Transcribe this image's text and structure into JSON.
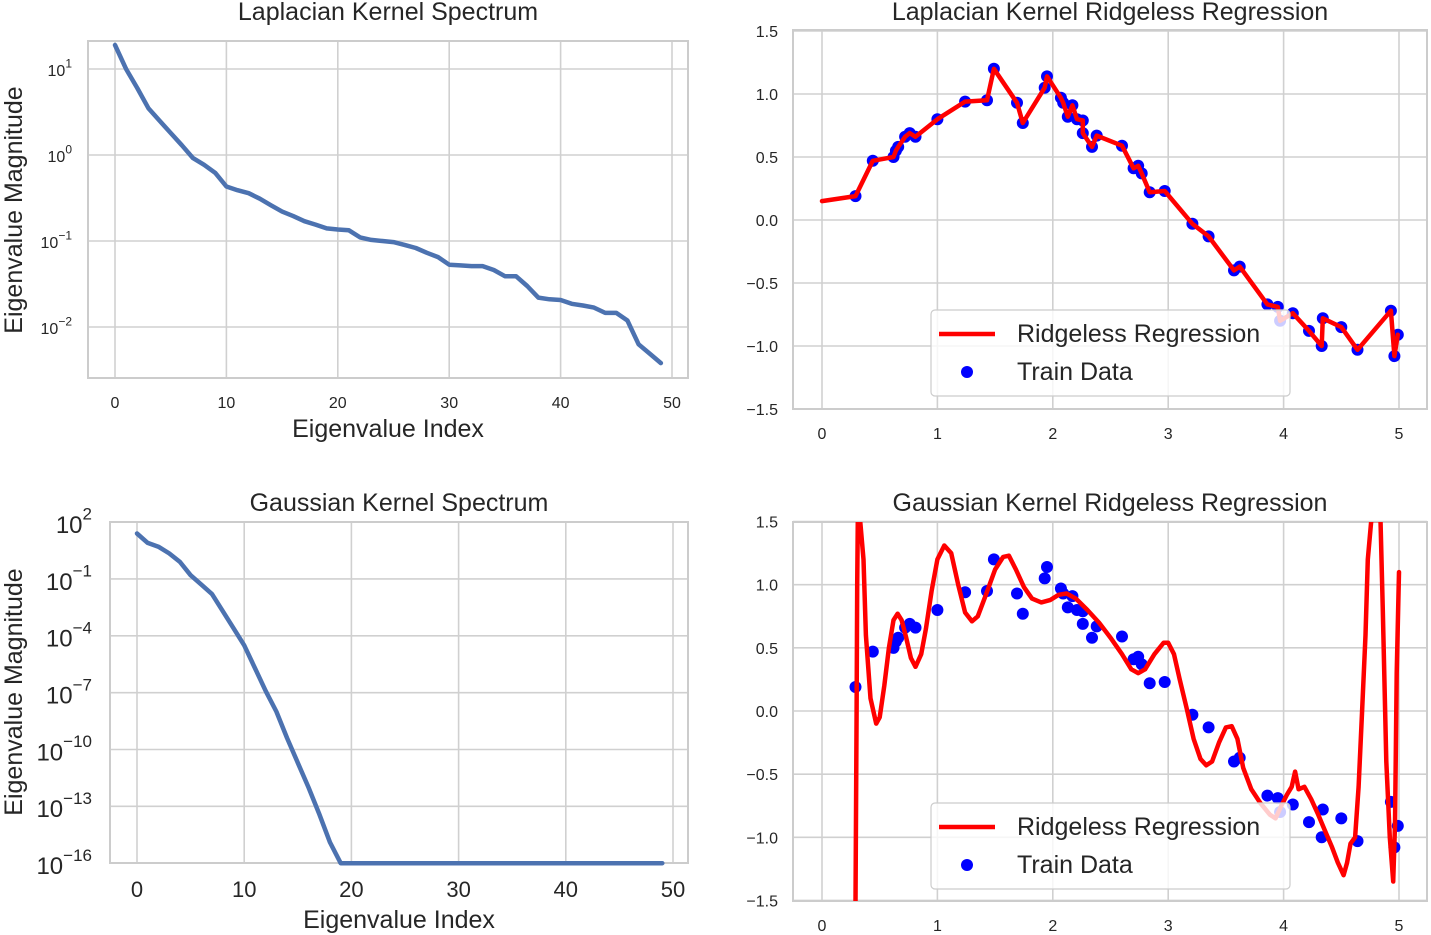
{
  "figure": {
    "background": "#ffffff",
    "colors": {
      "spectrum_line": "#4c72b0",
      "regression_line": "#ff0000",
      "train_points": "#0000ff",
      "grid": "#d0d0d0"
    }
  },
  "chart_data": [
    {
      "id": "laplacian_spectrum",
      "type": "line",
      "title": "Laplacian Kernel Spectrum",
      "xlabel": "Eigenvalue Index",
      "ylabel": "Eigenvalue Magnitude",
      "yscale": "log",
      "xlim": [
        -2.5,
        51.5
      ],
      "ylim_log10": [
        -2.6,
        1.33
      ],
      "xticks": [
        0,
        10,
        20,
        30,
        40,
        50
      ],
      "xtick_labels": [
        "0",
        "10",
        "20",
        "30",
        "40",
        "50"
      ],
      "yticks_log10": [
        1,
        0,
        -1,
        -2
      ],
      "ytick_labels": [
        {
          "base": "10",
          "exp": "1"
        },
        {
          "base": "10",
          "exp": "0"
        },
        {
          "base": "10",
          "exp": "−1"
        },
        {
          "base": "10",
          "exp": "−2"
        }
      ],
      "grid": true,
      "series": [
        {
          "name": "spectrum",
          "x": [
            0,
            1,
            2,
            3,
            4,
            5,
            6,
            7,
            8,
            9,
            10,
            11,
            12,
            13,
            14,
            15,
            16,
            17,
            18,
            19,
            20,
            21,
            22,
            23,
            24,
            25,
            26,
            27,
            28,
            29,
            30,
            31,
            32,
            33,
            34,
            35,
            36,
            37,
            38,
            39,
            40,
            41,
            42,
            43,
            44,
            45,
            46,
            47,
            48,
            49
          ],
          "values": [
            19,
            10,
            6.0,
            3.5,
            2.5,
            1.8,
            1.3,
            0.92,
            0.77,
            0.62,
            0.43,
            0.39,
            0.36,
            0.31,
            0.26,
            0.22,
            0.195,
            0.17,
            0.155,
            0.14,
            0.136,
            0.133,
            0.11,
            0.103,
            0.1,
            0.097,
            0.09,
            0.083,
            0.073,
            0.065,
            0.053,
            0.052,
            0.051,
            0.051,
            0.046,
            0.039,
            0.039,
            0.03,
            0.022,
            0.021,
            0.0206,
            0.0186,
            0.0178,
            0.0168,
            0.0146,
            0.0146,
            0.0119,
            0.0063,
            0.0049,
            0.0038
          ]
        }
      ]
    },
    {
      "id": "laplacian_regression",
      "type": "line+scatter",
      "title": "Laplacian Kernel Ridgeless Regression",
      "xlabel": "",
      "ylabel": "",
      "xlim": [
        -0.25,
        5.25
      ],
      "ylim": [
        -1.5,
        1.5
      ],
      "xticks": [
        0,
        1,
        2,
        3,
        4,
        5
      ],
      "xtick_labels": [
        "0",
        "1",
        "2",
        "3",
        "4",
        "5"
      ],
      "yticks": [
        1.5,
        1.0,
        0.5,
        0.0,
        -0.5,
        -1.0,
        -1.5
      ],
      "ytick_labels": [
        "1.5",
        "1.0",
        "0.5",
        "0.0",
        "−0.5",
        "−1.0",
        "−1.5"
      ],
      "grid": true,
      "legend": {
        "position": "lower center-right",
        "entries": [
          "Ridgeless Regression",
          "Train Data"
        ]
      },
      "series": [
        {
          "name": "Ridgeless Regression",
          "kind": "line",
          "source": "interpolate_train",
          "x_start": 0.0,
          "y_start": 0.15
        },
        {
          "name": "Train Data",
          "kind": "scatter",
          "source": "train_data"
        }
      ]
    },
    {
      "id": "gaussian_spectrum",
      "type": "line",
      "title": "Gaussian Kernel Spectrum",
      "xlabel": "Eigenvalue Index",
      "ylabel": "Eigenvalue Magnitude",
      "yscale": "log",
      "xlim": [
        -2.5,
        51.5
      ],
      "ylim_log10": [
        -16,
        2
      ],
      "xticks": [
        0,
        10,
        20,
        30,
        40,
        50
      ],
      "xtick_labels": [
        "0",
        "10",
        "20",
        "30",
        "40",
        "50"
      ],
      "yticks_log10": [
        2,
        -1,
        -4,
        -7,
        -10,
        -13,
        -16
      ],
      "ytick_labels": [
        {
          "base": "10",
          "exp": "2"
        },
        {
          "base": "10",
          "exp": "−1"
        },
        {
          "base": "10",
          "exp": "−4"
        },
        {
          "base": "10",
          "exp": "−7"
        },
        {
          "base": "10",
          "exp": "−10"
        },
        {
          "base": "10",
          "exp": "−13"
        },
        {
          "base": "10",
          "exp": "−16"
        }
      ],
      "grid": true,
      "series": [
        {
          "name": "spectrum",
          "x": [
            0,
            1,
            2,
            3,
            4,
            5,
            6,
            7,
            8,
            9,
            10,
            11,
            12,
            13,
            14,
            15,
            16,
            17,
            18,
            19,
            20,
            21,
            22,
            23,
            24,
            25,
            26,
            27,
            28,
            29,
            30,
            31,
            32,
            33,
            34,
            35,
            36,
            37,
            38,
            39,
            40,
            41,
            42,
            43,
            44,
            45,
            46,
            47,
            48,
            49
          ],
          "log10_values": [
            1.4,
            0.9,
            0.7,
            0.35,
            -0.1,
            -0.8,
            -1.3,
            -1.8,
            -2.7,
            -3.6,
            -4.5,
            -5.7,
            -6.9,
            -8.0,
            -9.4,
            -10.7,
            -12.0,
            -13.4,
            -14.9,
            -16.6,
            -17.9,
            -19.5,
            -21.4,
            -23.8,
            -26.8,
            -27.2,
            -27.5,
            -27.5,
            -27.6,
            -27.7,
            -28.0,
            -28.1,
            -28.2,
            -28.2,
            -28.2,
            -28.3,
            -28.7,
            -28.7,
            -28.7,
            -28.7,
            -28.7,
            -28.7,
            -28.7,
            -28.7,
            -28.7,
            -28.7,
            -28.7,
            -28.7,
            -28.7,
            -28.7
          ],
          "note": "values below 1e-16 are clipped at the axis floor"
        }
      ]
    },
    {
      "id": "gaussian_regression",
      "type": "line+scatter",
      "title": "Gaussian Kernel Ridgeless Regression",
      "xlabel": "",
      "ylabel": "",
      "xlim": [
        -0.25,
        5.25
      ],
      "ylim": [
        -1.5,
        1.5
      ],
      "xticks": [
        0,
        1,
        2,
        3,
        4,
        5
      ],
      "xtick_labels": [
        "0",
        "1",
        "2",
        "3",
        "4",
        "5"
      ],
      "yticks": [
        1.5,
        1.0,
        0.5,
        0.0,
        -0.5,
        -1.0,
        -1.5
      ],
      "ytick_labels": [
        "1.5",
        "1.0",
        "0.5",
        "0.0",
        "−0.5",
        "−1.0",
        "−1.5"
      ],
      "grid": true,
      "legend": {
        "position": "lower center-right",
        "entries": [
          "Ridgeless Regression",
          "Train Data"
        ]
      },
      "series": [
        {
          "name": "Ridgeless Regression",
          "kind": "line",
          "x": [
            0.29,
            0.3,
            0.305,
            0.31,
            0.33,
            0.36,
            0.38,
            0.42,
            0.47,
            0.5,
            0.54,
            0.58,
            0.62,
            0.655,
            0.69,
            0.73,
            0.77,
            0.81,
            0.86,
            0.9,
            0.95,
            1.0,
            1.06,
            1.12,
            1.18,
            1.24,
            1.3,
            1.35,
            1.42,
            1.5,
            1.57,
            1.62,
            1.68,
            1.75,
            1.82,
            1.9,
            1.98,
            2.05,
            2.12,
            2.2,
            2.3,
            2.4,
            2.5,
            2.6,
            2.68,
            2.74,
            2.8,
            2.88,
            2.96,
            3.0,
            3.05,
            3.1,
            3.16,
            3.22,
            3.28,
            3.33,
            3.38,
            3.44,
            3.5,
            3.55,
            3.6,
            3.65,
            3.72,
            3.8,
            3.88,
            3.93,
            3.98,
            4.03,
            4.07,
            4.1,
            4.13,
            4.18,
            4.24,
            4.3,
            4.36,
            4.42,
            4.47,
            4.52,
            4.55,
            4.58,
            4.62,
            4.65,
            4.68,
            4.71,
            4.73,
            4.76,
            4.84,
            4.86,
            4.89,
            4.92,
            4.95,
            4.965,
            4.98,
            5.0
          ],
          "y": [
            -1.6,
            0.0,
            1.0,
            1.6,
            1.6,
            1.2,
            0.6,
            0.1,
            -0.1,
            -0.05,
            0.2,
            0.5,
            0.72,
            0.77,
            0.72,
            0.58,
            0.42,
            0.35,
            0.45,
            0.65,
            0.95,
            1.2,
            1.31,
            1.25,
            1.0,
            0.78,
            0.71,
            0.75,
            0.92,
            1.12,
            1.22,
            1.23,
            1.12,
            0.98,
            0.89,
            0.86,
            0.88,
            0.92,
            0.93,
            0.89,
            0.8,
            0.7,
            0.58,
            0.45,
            0.33,
            0.3,
            0.33,
            0.45,
            0.54,
            0.54,
            0.45,
            0.25,
            0.02,
            -0.22,
            -0.38,
            -0.43,
            -0.4,
            -0.25,
            -0.13,
            -0.12,
            -0.22,
            -0.45,
            -0.62,
            -0.73,
            -0.82,
            -0.85,
            -0.75,
            -0.66,
            -0.6,
            -0.48,
            -0.62,
            -0.6,
            -0.7,
            -0.82,
            -0.95,
            -1.08,
            -1.2,
            -1.3,
            -1.2,
            -1.05,
            -1.0,
            -0.6,
            0.0,
            0.6,
            1.2,
            1.6,
            1.6,
            0.8,
            -0.4,
            -1.0,
            -1.35,
            -0.9,
            0.3,
            1.1
          ]
        },
        {
          "name": "Train Data",
          "kind": "scatter",
          "source": "train_data"
        }
      ]
    }
  ],
  "train_data": {
    "x": [
      0.29,
      0.44,
      0.62,
      0.64,
      0.66,
      0.72,
      0.76,
      0.81,
      1.0,
      1.24,
      1.43,
      1.49,
      1.69,
      1.74,
      1.93,
      1.95,
      2.07,
      2.09,
      2.13,
      2.17,
      2.21,
      2.26,
      2.26,
      2.34,
      2.38,
      2.6,
      2.7,
      2.74,
      2.77,
      2.84,
      2.97,
      3.21,
      3.35,
      3.57,
      3.62,
      3.86,
      3.95,
      3.97,
      4.08,
      4.22,
      4.33,
      4.34,
      4.5,
      4.64,
      4.93,
      4.96,
      4.99
    ],
    "y": [
      0.19,
      0.47,
      0.5,
      0.55,
      0.58,
      0.66,
      0.69,
      0.66,
      0.8,
      0.94,
      0.95,
      1.2,
      0.93,
      0.77,
      1.05,
      1.14,
      0.97,
      0.93,
      0.82,
      0.91,
      0.8,
      0.79,
      0.69,
      0.58,
      0.67,
      0.59,
      0.41,
      0.43,
      0.37,
      0.22,
      0.23,
      -0.03,
      -0.13,
      -0.4,
      -0.37,
      -0.67,
      -0.69,
      -0.8,
      -0.74,
      -0.88,
      -1.0,
      -0.78,
      -0.85,
      -1.03,
      -0.72,
      -1.08,
      -0.91
    ]
  },
  "panels": [
    {
      "title": "Laplacian Kernel Spectrum",
      "xlabel": "Eigenvalue Index",
      "ylabel": "Eigenvalue Magnitude"
    },
    {
      "title": "Laplacian Kernel Ridgeless Regression"
    },
    {
      "title": "Gaussian Kernel Spectrum",
      "xlabel": "Eigenvalue Index",
      "ylabel": "Eigenvalue Magnitude"
    },
    {
      "title": "Gaussian Kernel Ridgeless Regression"
    }
  ],
  "legend": {
    "line_label": "Ridgeless Regression",
    "points_label": "Train Data"
  }
}
